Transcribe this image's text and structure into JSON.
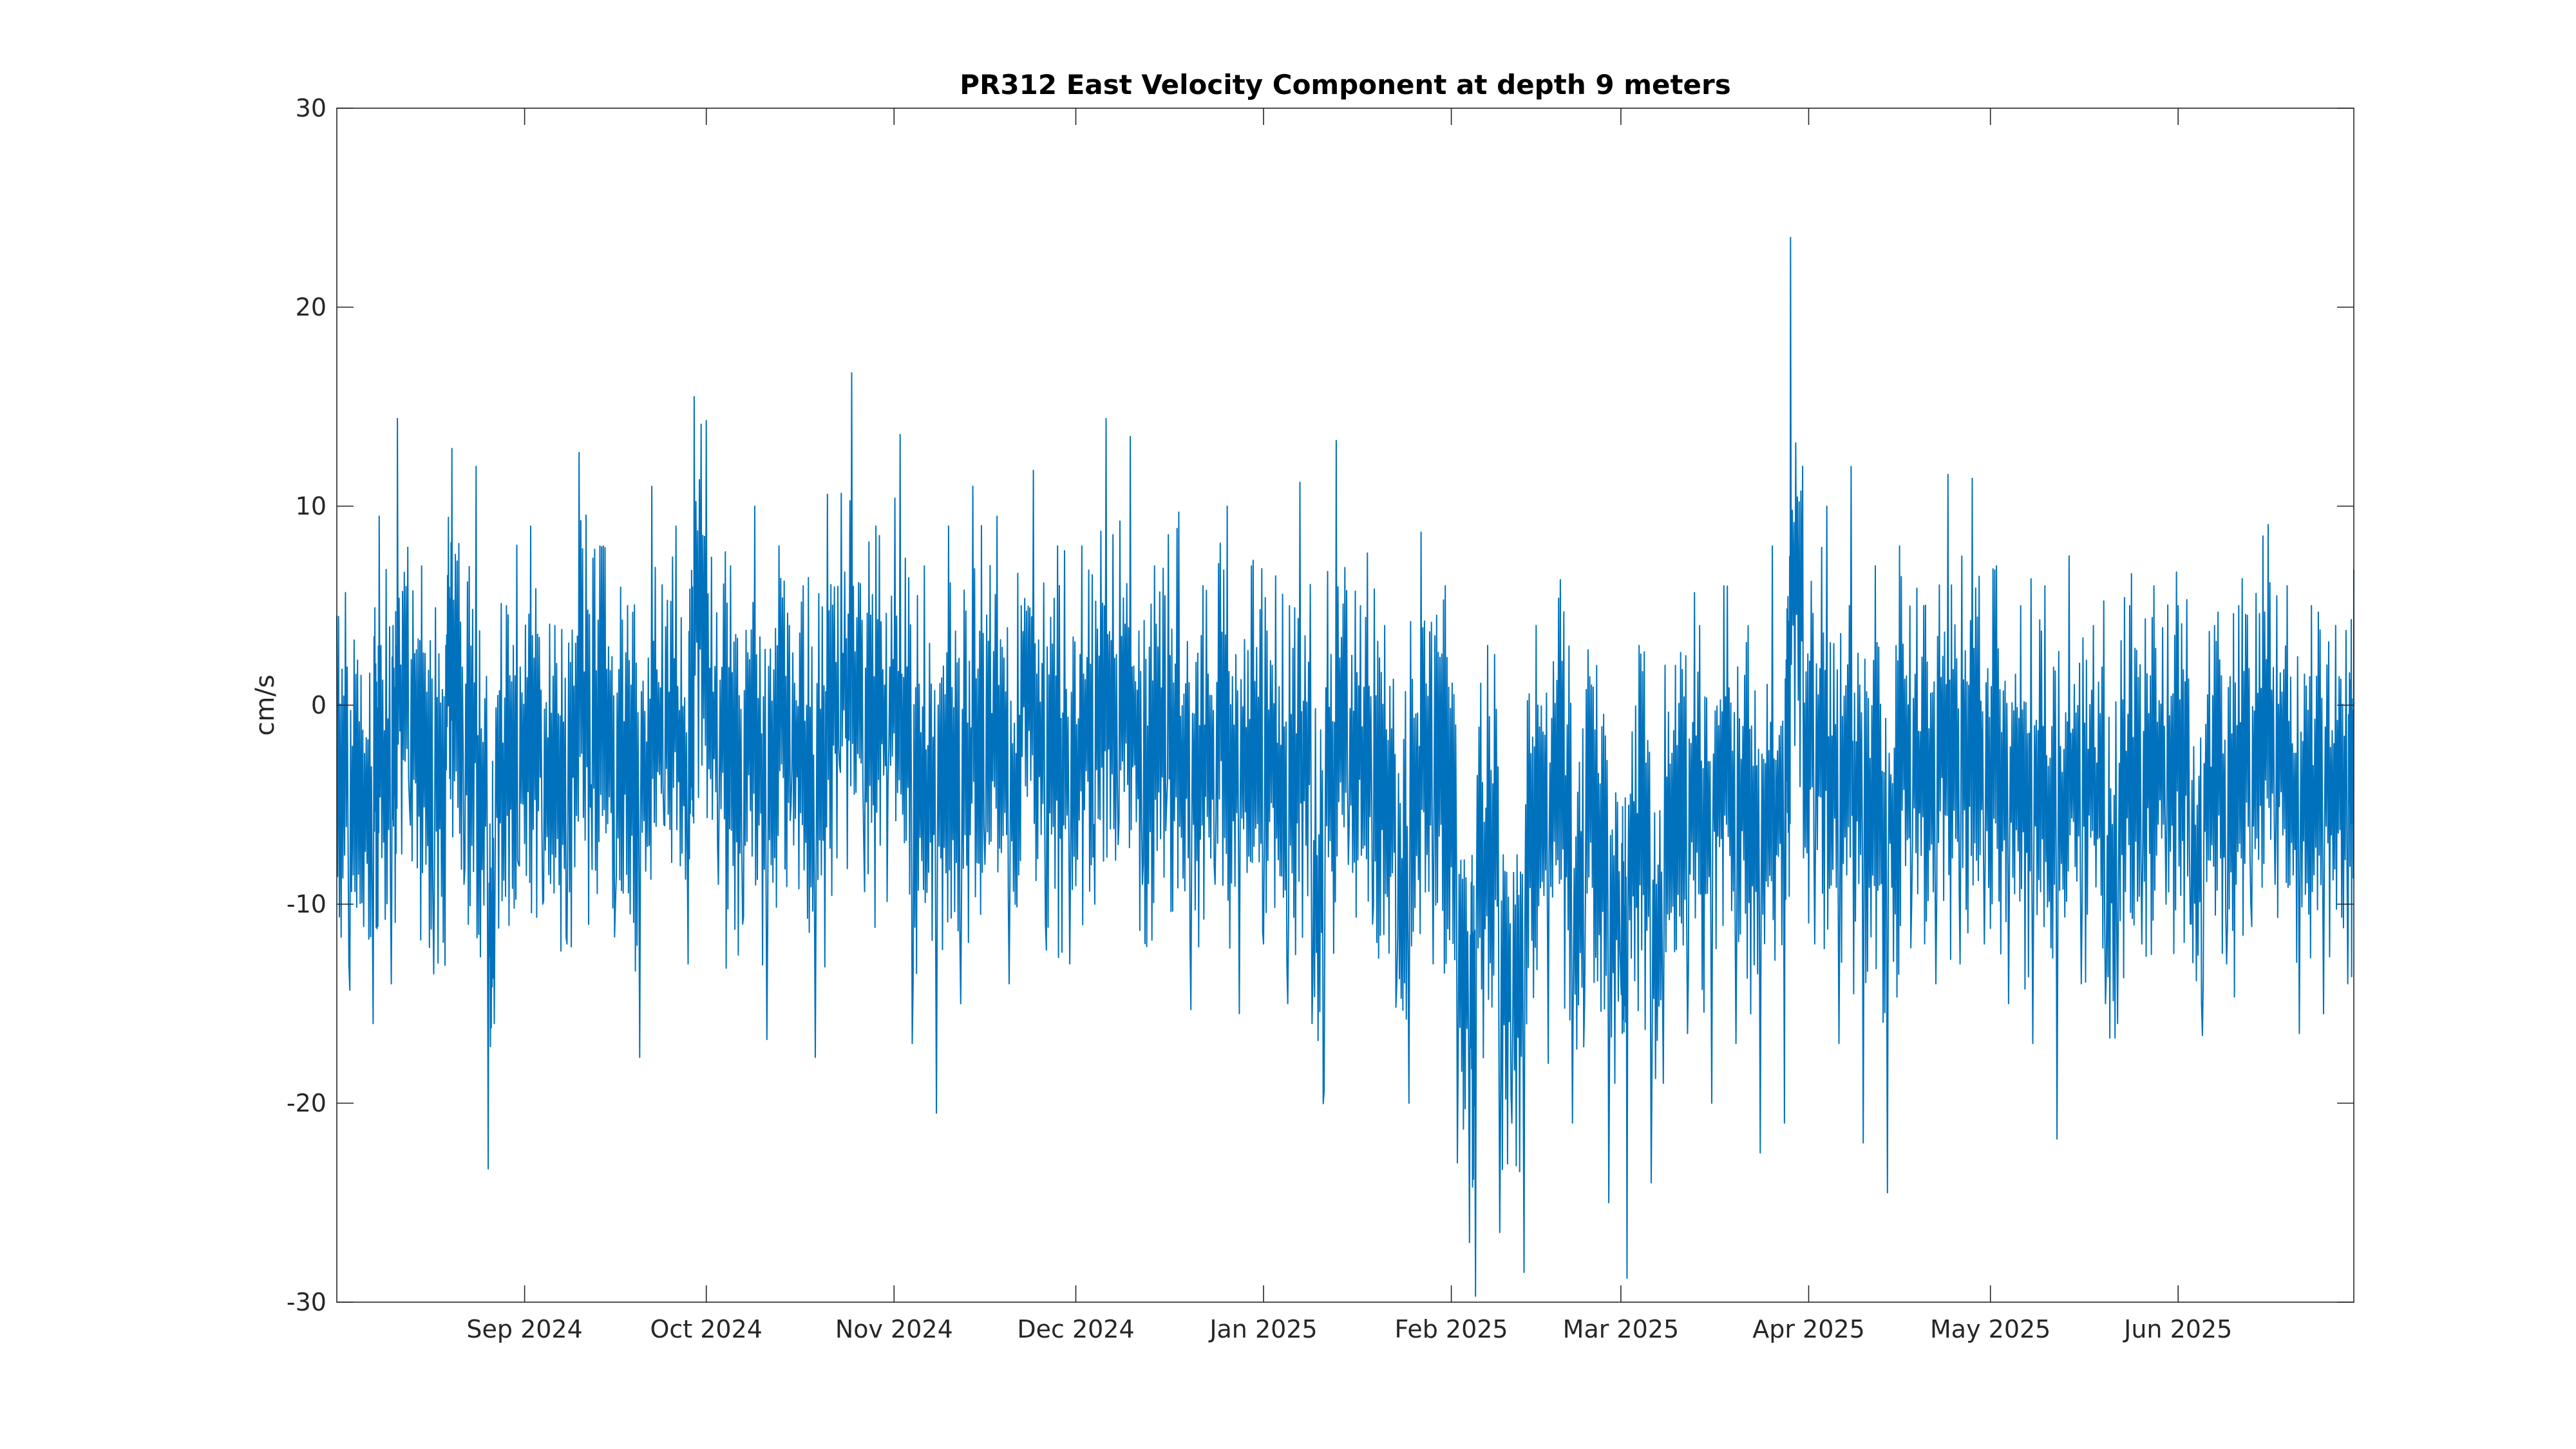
{
  "chart_data": {
    "type": "line",
    "title": "PR312 East Velocity Component at depth 9 meters",
    "xlabel": "",
    "ylabel": "cm/s",
    "xlim": [
      "2024-08-01",
      "2025-06-30"
    ],
    "ylim": [
      -30,
      30
    ],
    "grid": false,
    "x_ticks": [
      {
        "date": "2024-09-01",
        "label": "Sep 2024"
      },
      {
        "date": "2024-10-01",
        "label": "Oct 2024"
      },
      {
        "date": "2024-11-01",
        "label": "Nov 2024"
      },
      {
        "date": "2024-12-01",
        "label": "Dec 2024"
      },
      {
        "date": "2025-01-01",
        "label": "Jan 2025"
      },
      {
        "date": "2025-02-01",
        "label": "Feb 2025"
      },
      {
        "date": "2025-03-01",
        "label": "Mar 2025"
      },
      {
        "date": "2025-04-01",
        "label": "Apr 2025"
      },
      {
        "date": "2025-05-01",
        "label": "May 2025"
      },
      {
        "date": "2025-06-01",
        "label": "Jun 2025"
      }
    ],
    "y_ticks": [
      {
        "value": 30,
        "label": "30"
      },
      {
        "value": 20,
        "label": "20"
      },
      {
        "value": 10,
        "label": "10"
      },
      {
        "value": 0,
        "label": "0"
      },
      {
        "value": -10,
        "label": "-10"
      },
      {
        "value": -20,
        "label": "-20"
      },
      {
        "value": -30,
        "label": "-30"
      }
    ],
    "series": [
      {
        "color": "#0072BD",
        "data": [
          [
            "2024-08-01",
            4.5
          ],
          [
            "2024-08-03",
            -13.0
          ],
          [
            "2024-08-05",
            1.5
          ],
          [
            "2024-08-07",
            -16.0
          ],
          [
            "2024-08-08",
            9.5
          ],
          [
            "2024-08-10",
            -14.0
          ],
          [
            "2024-08-11",
            14.4
          ],
          [
            "2024-08-13",
            -5.0
          ],
          [
            "2024-08-15",
            7.0
          ],
          [
            "2024-08-17",
            -13.5
          ],
          [
            "2024-08-19",
            3.0
          ],
          [
            "2024-08-20",
            12.9
          ],
          [
            "2024-08-22",
            -9.0
          ],
          [
            "2024-08-24",
            12.0
          ],
          [
            "2024-08-26",
            -23.3
          ],
          [
            "2024-08-27",
            -16.0
          ],
          [
            "2024-08-29",
            5.0
          ],
          [
            "2024-08-31",
            -8.0
          ],
          [
            "2024-09-02",
            9.0
          ],
          [
            "2024-09-04",
            -10.0
          ],
          [
            "2024-09-06",
            4.0
          ],
          [
            "2024-09-08",
            -12.0
          ],
          [
            "2024-09-10",
            12.7
          ],
          [
            "2024-09-12",
            -4.0
          ],
          [
            "2024-09-14",
            8.0
          ],
          [
            "2024-09-16",
            -10.0
          ],
          [
            "2024-09-18",
            5.0
          ],
          [
            "2024-09-20",
            -17.7
          ],
          [
            "2024-09-22",
            11.0
          ],
          [
            "2024-09-24",
            -6.0
          ],
          [
            "2024-09-26",
            9.0
          ],
          [
            "2024-09-28",
            -13.0
          ],
          [
            "2024-09-29",
            15.5
          ],
          [
            "2024-10-01",
            14.3
          ],
          [
            "2024-10-03",
            -9.0
          ],
          [
            "2024-10-05",
            7.0
          ],
          [
            "2024-10-07",
            -11.0
          ],
          [
            "2024-10-09",
            10.0
          ],
          [
            "2024-10-11",
            -16.8
          ],
          [
            "2024-10-13",
            8.0
          ],
          [
            "2024-10-15",
            -5.0
          ],
          [
            "2024-10-17",
            6.0
          ],
          [
            "2024-10-19",
            -17.7
          ],
          [
            "2024-10-21",
            10.6
          ],
          [
            "2024-10-23",
            -3.0
          ],
          [
            "2024-10-25",
            16.7
          ],
          [
            "2024-10-27",
            -7.0
          ],
          [
            "2024-10-29",
            9.0
          ],
          [
            "2024-10-31",
            -4.0
          ],
          [
            "2024-11-02",
            13.6
          ],
          [
            "2024-11-04",
            -17.0
          ],
          [
            "2024-11-06",
            7.0
          ],
          [
            "2024-11-08",
            -20.5
          ],
          [
            "2024-11-10",
            9.0
          ],
          [
            "2024-11-12",
            -15.0
          ],
          [
            "2024-11-14",
            11.0
          ],
          [
            "2024-11-16",
            -8.0
          ],
          [
            "2024-11-18",
            9.5
          ],
          [
            "2024-11-20",
            -14.0
          ],
          [
            "2024-11-22",
            5.0
          ],
          [
            "2024-11-24",
            11.8
          ],
          [
            "2024-11-26",
            -11.0
          ],
          [
            "2024-11-28",
            8.0
          ],
          [
            "2024-11-30",
            -13.0
          ],
          [
            "2024-12-02",
            8.0
          ],
          [
            "2024-12-04",
            -6.0
          ],
          [
            "2024-12-06",
            14.4
          ],
          [
            "2024-12-08",
            -7.0
          ],
          [
            "2024-12-10",
            13.5
          ],
          [
            "2024-12-12",
            -9.0
          ],
          [
            "2024-12-14",
            7.0
          ],
          [
            "2024-12-16",
            -5.0
          ],
          [
            "2024-12-18",
            9.7
          ],
          [
            "2024-12-20",
            -15.3
          ],
          [
            "2024-12-22",
            6.0
          ],
          [
            "2024-12-24",
            -9.0
          ],
          [
            "2024-12-26",
            10.0
          ],
          [
            "2024-12-28",
            -15.5
          ],
          [
            "2024-12-30",
            7.0
          ],
          [
            "2025-01-01",
            -12.0
          ],
          [
            "2025-01-03",
            6.5
          ],
          [
            "2025-01-05",
            -15.0
          ],
          [
            "2025-01-07",
            11.2
          ],
          [
            "2025-01-09",
            -16.0
          ],
          [
            "2025-01-11",
            -19.4
          ],
          [
            "2025-01-13",
            13.3
          ],
          [
            "2025-01-15",
            -8.0
          ],
          [
            "2025-01-17",
            5.0
          ],
          [
            "2025-01-19",
            -11.0
          ],
          [
            "2025-01-21",
            4.0
          ],
          [
            "2025-01-23",
            -14.0
          ],
          [
            "2025-01-25",
            -20.0
          ],
          [
            "2025-01-27",
            8.7
          ],
          [
            "2025-01-29",
            -13.0
          ],
          [
            "2025-01-31",
            6.0
          ],
          [
            "2025-02-02",
            -23.0
          ],
          [
            "2025-02-04",
            -27.0
          ],
          [
            "2025-02-05",
            -29.7
          ],
          [
            "2025-02-07",
            3.0
          ],
          [
            "2025-02-09",
            -26.5
          ],
          [
            "2025-02-11",
            -21.0
          ],
          [
            "2025-02-13",
            -28.5
          ],
          [
            "2025-02-15",
            4.0
          ],
          [
            "2025-02-17",
            -18.0
          ],
          [
            "2025-02-19",
            6.3
          ],
          [
            "2025-02-21",
            -21.0
          ],
          [
            "2025-02-23",
            -15.0
          ],
          [
            "2025-02-25",
            2.0
          ],
          [
            "2025-02-27",
            -25.0
          ],
          [
            "2025-03-01",
            -14.0
          ],
          [
            "2025-03-02",
            -28.8
          ],
          [
            "2025-03-04",
            3.0
          ],
          [
            "2025-03-06",
            -24.0
          ],
          [
            "2025-03-08",
            -19.0
          ],
          [
            "2025-03-10",
            2.0
          ],
          [
            "2025-03-12",
            -16.5
          ],
          [
            "2025-03-14",
            4.0
          ],
          [
            "2025-03-16",
            -20.0
          ],
          [
            "2025-03-18",
            6.0
          ],
          [
            "2025-03-20",
            -17.0
          ],
          [
            "2025-03-22",
            4.0
          ],
          [
            "2025-03-24",
            -22.5
          ],
          [
            "2025-03-26",
            8.0
          ],
          [
            "2025-03-28",
            -21.0
          ],
          [
            "2025-03-29",
            23.5
          ],
          [
            "2025-03-31",
            12.0
          ],
          [
            "2025-04-02",
            -12.0
          ],
          [
            "2025-04-04",
            10.0
          ],
          [
            "2025-04-06",
            -17.0
          ],
          [
            "2025-04-08",
            12.0
          ],
          [
            "2025-04-10",
            -22.0
          ],
          [
            "2025-04-12",
            7.0
          ],
          [
            "2025-04-14",
            -24.5
          ],
          [
            "2025-04-16",
            8.0
          ],
          [
            "2025-04-18",
            -10.0
          ],
          [
            "2025-04-20",
            5.0
          ],
          [
            "2025-04-22",
            -14.0
          ],
          [
            "2025-04-24",
            11.6
          ],
          [
            "2025-04-26",
            -13.0
          ],
          [
            "2025-04-28",
            11.4
          ],
          [
            "2025-04-30",
            -12.0
          ],
          [
            "2025-05-02",
            7.0
          ],
          [
            "2025-05-04",
            -15.0
          ],
          [
            "2025-05-06",
            5.0
          ],
          [
            "2025-05-08",
            -17.0
          ],
          [
            "2025-05-10",
            6.0
          ],
          [
            "2025-05-12",
            -21.8
          ],
          [
            "2025-05-14",
            7.5
          ],
          [
            "2025-05-16",
            -14.0
          ],
          [
            "2025-05-18",
            4.0
          ],
          [
            "2025-05-20",
            -15.0
          ],
          [
            "2025-05-22",
            -16.0
          ],
          [
            "2025-05-24",
            5.0
          ],
          [
            "2025-05-26",
            -12.0
          ],
          [
            "2025-05-28",
            6.0
          ],
          [
            "2025-05-30",
            -10.0
          ],
          [
            "2025-06-01",
            5.0
          ],
          [
            "2025-06-03",
            -11.0
          ],
          [
            "2025-06-05",
            -16.6
          ],
          [
            "2025-06-07",
            4.0
          ],
          [
            "2025-06-09",
            -13.0
          ],
          [
            "2025-06-11",
            5.0
          ],
          [
            "2025-06-13",
            -10.0
          ],
          [
            "2025-06-15",
            8.5
          ],
          [
            "2025-06-17",
            -9.0
          ],
          [
            "2025-06-19",
            6.0
          ],
          [
            "2025-06-21",
            -16.5
          ],
          [
            "2025-06-23",
            5.0
          ],
          [
            "2025-06-25",
            -15.5
          ],
          [
            "2025-06-27",
            4.0
          ],
          [
            "2025-06-29",
            -14.0
          ],
          [
            "2025-06-30",
            6.8
          ]
        ]
      }
    ]
  }
}
